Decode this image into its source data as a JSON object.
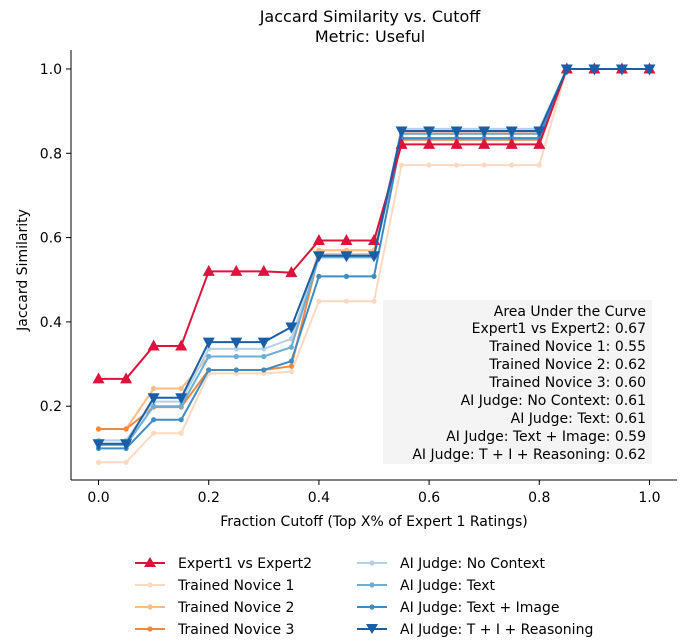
{
  "chart_data": {
    "type": "line",
    "title": "Jaccard Similarity vs. Cutoff",
    "subtitle": "Metric: Useful",
    "xlabel": "Fraction Cutoff (Top X% of Expert 1 Ratings)",
    "ylabel": "Jaccard Similarity",
    "xlim": [
      -0.05,
      1.05
    ],
    "ylim": [
      0.025,
      1.045
    ],
    "xticks": [
      "0.0",
      "0.2",
      "0.4",
      "0.6",
      "0.8",
      "1.0"
    ],
    "yticks": [
      "0.2",
      "0.4",
      "0.6",
      "0.8",
      "1.0"
    ],
    "x": [
      0.0,
      0.05,
      0.1,
      0.15,
      0.2,
      0.25,
      0.3,
      0.35,
      0.4,
      0.45,
      0.5,
      0.55,
      0.6,
      0.65,
      0.7,
      0.75,
      0.8,
      0.85,
      0.9,
      0.95,
      1.0
    ],
    "series": [
      {
        "name": "Trained Novice 1",
        "color": "#fdd9c0",
        "marker": "dot",
        "values": [
          0.067,
          0.067,
          0.136,
          0.136,
          0.278,
          0.278,
          0.278,
          0.282,
          0.449,
          0.449,
          0.449,
          0.772,
          0.772,
          0.772,
          0.772,
          0.772,
          0.772,
          1.0,
          1.0,
          1.0,
          1.0
        ]
      },
      {
        "name": "Trained Novice 2",
        "color": "#fdbb84",
        "marker": "dot",
        "values": [
          0.146,
          0.146,
          0.242,
          0.242,
          0.318,
          0.318,
          0.318,
          0.34,
          0.57,
          0.57,
          0.57,
          0.848,
          0.848,
          0.848,
          0.848,
          0.848,
          0.848,
          1.0,
          1.0,
          1.0,
          1.0
        ]
      },
      {
        "name": "Trained Novice 3",
        "color": "#f4883a",
        "marker": "dot",
        "values": [
          0.146,
          0.146,
          0.198,
          0.198,
          0.286,
          0.286,
          0.286,
          0.295,
          0.56,
          0.56,
          0.56,
          0.832,
          0.832,
          0.832,
          0.832,
          0.832,
          0.832,
          1.0,
          1.0,
          1.0,
          1.0
        ]
      },
      {
        "name": "AI Judge: No Context",
        "color": "#b3d0e6",
        "marker": "dot",
        "values": [
          0.119,
          0.119,
          0.211,
          0.211,
          0.336,
          0.336,
          0.336,
          0.36,
          0.558,
          0.558,
          0.558,
          0.858,
          0.858,
          0.858,
          0.858,
          0.858,
          0.858,
          1.0,
          1.0,
          1.0,
          1.0
        ]
      },
      {
        "name": "AI Judge: Text",
        "color": "#6baed6",
        "marker": "dot",
        "values": [
          0.108,
          0.108,
          0.2,
          0.2,
          0.318,
          0.318,
          0.318,
          0.34,
          0.553,
          0.553,
          0.553,
          0.846,
          0.846,
          0.846,
          0.846,
          0.846,
          0.846,
          1.0,
          1.0,
          1.0,
          1.0
        ]
      },
      {
        "name": "AI Judge: Text + Image",
        "color": "#3d8dc4",
        "marker": "dot",
        "values": [
          0.1,
          0.1,
          0.168,
          0.168,
          0.286,
          0.286,
          0.286,
          0.307,
          0.508,
          0.508,
          0.508,
          0.836,
          0.836,
          0.836,
          0.836,
          0.836,
          0.836,
          1.0,
          1.0,
          1.0,
          1.0
        ]
      },
      {
        "name": "Expert1 vs Expert2",
        "color": "#dc143c",
        "marker": "triangle-up",
        "values": [
          0.265,
          0.265,
          0.343,
          0.343,
          0.52,
          0.52,
          0.52,
          0.517,
          0.593,
          0.593,
          0.593,
          0.821,
          0.821,
          0.821,
          0.821,
          0.821,
          0.821,
          1.0,
          1.0,
          1.0,
          1.0
        ]
      },
      {
        "name": "AI Judge: T + I + Reasoning",
        "color": "#1a5ea8",
        "marker": "triangle-down",
        "values": [
          0.111,
          0.111,
          0.22,
          0.22,
          0.352,
          0.352,
          0.352,
          0.388,
          0.557,
          0.557,
          0.557,
          0.853,
          0.853,
          0.853,
          0.853,
          0.853,
          0.853,
          1.0,
          1.0,
          1.0,
          1.0
        ]
      }
    ],
    "annotation": {
      "title": "Area Under the Curve",
      "lines": [
        "Expert1 vs Expert2: 0.67",
        "Trained Novice 1: 0.55",
        "Trained Novice 2: 0.62",
        "Trained Novice 3: 0.60",
        "AI Judge: No Context: 0.61",
        "AI Judge: Text: 0.61",
        "AI Judge: Text + Image: 0.59",
        "AI Judge: T + I + Reasoning: 0.62"
      ]
    },
    "legend": {
      "placement": "bottom-center",
      "columns": [
        [
          "Expert1 vs Expert2",
          "Trained Novice 1",
          "Trained Novice 2",
          "Trained Novice 3"
        ],
        [
          "AI Judge: No Context",
          "AI Judge: Text",
          "AI Judge: Text + Image",
          "AI Judge: T + I + Reasoning"
        ]
      ]
    },
    "grid": false
  }
}
